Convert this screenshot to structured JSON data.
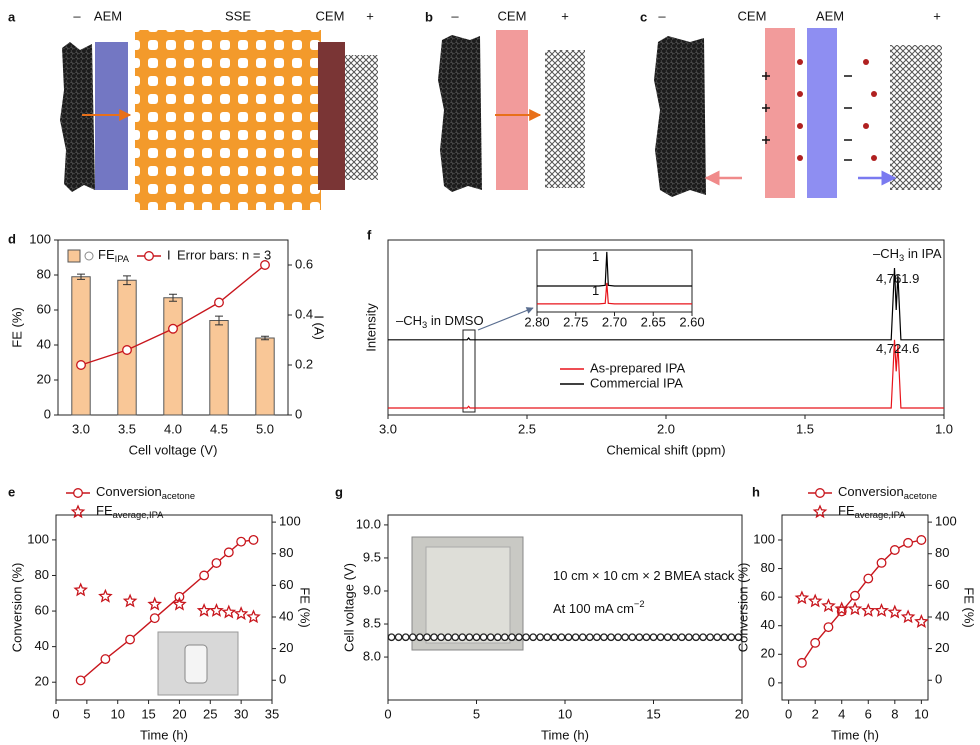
{
  "illustrations": [
    {
      "panel": "a",
      "labels": [
        "–",
        "AEM",
        "SSE",
        "CEM",
        "+"
      ]
    },
    {
      "panel": "b",
      "labels": [
        "–",
        "CEM",
        "+"
      ]
    },
    {
      "panel": "c",
      "labels": [
        "–",
        "CEM",
        "AEM",
        "+"
      ]
    }
  ],
  "chart_data": [
    {
      "type": "bar",
      "panel": "d",
      "categories": [
        "3.0",
        "3.5",
        "4.0",
        "4.5",
        "5.0"
      ],
      "xlabel": "Cell voltage (V)",
      "ylabel": "FE (%)",
      "y2label": "I (A)",
      "ylim": [
        0,
        100
      ],
      "yticks": [
        0,
        20,
        40,
        60,
        80,
        100
      ],
      "y2lim": [
        0,
        0.7
      ],
      "y2ticks": [
        0,
        0.2,
        0.4,
        0.6
      ],
      "legend_note": "Error bars: n = 3",
      "series": [
        {
          "name": {
            "text": "FE",
            "sub": "IPA"
          },
          "kind": "bar",
          "color": "#f9c797",
          "values": [
            79,
            77,
            67,
            54,
            44
          ],
          "errors": [
            1.5,
            2.5,
            2,
            2.5,
            1
          ]
        },
        {
          "name": "I",
          "kind": "line",
          "marker": "circle",
          "color": "#c8161d",
          "axis": "y2",
          "values": [
            0.2,
            0.26,
            0.345,
            0.45,
            0.6
          ]
        }
      ]
    },
    {
      "type": "line",
      "panel": "f",
      "xlabel": "Chemical shift (ppm)",
      "ylabel": "Intensity",
      "xlim": [
        3,
        1
      ],
      "xticks": [
        {
          "value": 3,
          "label": "3.0"
        },
        2.5,
        {
          "value": 2,
          "label": "2.0"
        },
        1.5,
        {
          "value": 1,
          "label": "1.0"
        }
      ],
      "ylim": [
        0,
        100
      ],
      "x": [
        3,
        2.715,
        2.71,
        2.705,
        1.19,
        1.178,
        1.172,
        1.166,
        1.155,
        1
      ],
      "series": [
        {
          "name": "Commercial IPA",
          "color": "#000000",
          "values": [
            43,
            43,
            44,
            43,
            43,
            84,
            60,
            80,
            43,
            43
          ]
        },
        {
          "name": "As-prepared IPA",
          "color": "#e8141b",
          "values": [
            4,
            4,
            5,
            4,
            4,
            43,
            25,
            40,
            4,
            4
          ]
        }
      ],
      "annotations": [
        {
          "text": "–CH",
          "sub": "3",
          "rest": " in DMSO"
        },
        {
          "text": "–CH",
          "sub": "3",
          "rest": " in IPA"
        },
        {
          "text": "4,761.9"
        },
        {
          "text": "4,724.6"
        }
      ]
    },
    {
      "type": "line",
      "xlim": [
        2.8,
        2.6
      ],
      "xticks": [
        {
          "value": 2.8,
          "label": "2.80"
        },
        2.75,
        {
          "value": 2.7,
          "label": "2.70"
        },
        2.65,
        {
          "value": 2.6,
          "label": "2.60"
        }
      ],
      "ylim": [
        0,
        10
      ],
      "x": [
        2.8,
        2.72,
        2.712,
        2.71,
        2.708,
        2.7,
        2.6
      ],
      "series": [
        {
          "color": "#000000",
          "values": [
            4.2,
            4.2,
            4.3,
            9.7,
            4.3,
            4.2,
            4.2
          ]
        },
        {
          "color": "#e8141b",
          "values": [
            1.3,
            1.3,
            1.4,
            4.7,
            1.4,
            1.3,
            1.3
          ]
        }
      ],
      "annotations": [
        {
          "text": "1"
        },
        {
          "text": "1"
        }
      ]
    },
    {
      "type": "line",
      "panel": "e",
      "xlabel": "Time (h)",
      "ylabel": "Conversion (%)",
      "y2label": "FE (%)",
      "xlim": [
        0,
        35
      ],
      "xticks": [
        0,
        5,
        10,
        15,
        20,
        25,
        30,
        35
      ],
      "ylim": [
        10,
        114
      ],
      "yticks": [
        20,
        40,
        60,
        80,
        100
      ],
      "y2lim": [
        -12.5,
        104.5
      ],
      "y2ticks": [
        0,
        20,
        40,
        60,
        80,
        100
      ],
      "x": [
        4,
        8,
        12,
        16,
        20,
        24,
        26,
        28,
        30,
        32
      ],
      "series": [
        {
          "name": {
            "text": "Conversion",
            "sub": "acetone"
          },
          "kind": "line",
          "marker": "circle",
          "color": "#c8161d",
          "values": [
            21,
            33,
            44,
            56,
            68,
            80,
            87,
            93,
            99,
            100
          ]
        },
        {
          "name": {
            "text": "FE",
            "sub": "average,IPA"
          },
          "kind": "scatter",
          "marker": "star",
          "color": "#c8161d",
          "axis": "y2",
          "values": [
            57,
            53,
            50,
            48,
            48,
            44,
            44,
            43,
            42,
            40
          ]
        }
      ]
    },
    {
      "type": "scatter",
      "panel": "g",
      "xlabel": "Time (h)",
      "ylabel": "Cell voltage (V)",
      "xlim": [
        0,
        20
      ],
      "xticks": [
        0,
        5,
        10,
        15,
        20
      ],
      "ylim": [
        7.35,
        10.15
      ],
      "yticks": [
        {
          "value": 8,
          "label": "8.0"
        },
        8.5,
        {
          "value": 9,
          "label": "9.0"
        },
        9.5,
        {
          "value": 10,
          "label": "10.0"
        }
      ],
      "x": [
        0.2,
        0.6,
        1,
        1.4,
        1.8,
        2.2,
        2.6,
        3,
        3.4,
        3.8,
        4.2,
        4.6,
        5,
        5.4,
        5.8,
        6.2,
        6.6,
        7,
        7.4,
        7.8,
        8.2,
        8.6,
        9,
        9.4,
        9.8,
        10.2,
        10.6,
        11,
        11.4,
        11.8,
        12.2,
        12.6,
        13,
        13.4,
        13.8,
        14.2,
        14.6,
        15,
        15.4,
        15.8,
        16.2,
        16.6,
        17,
        17.4,
        17.8,
        18.2,
        18.6,
        19,
        19.4,
        19.8
      ],
      "series": [
        {
          "kind": "scatter",
          "marker": "circle",
          "size": 3.2,
          "color": "#222222",
          "values": [
            8.3,
            8.3,
            8.3,
            8.3,
            8.3,
            8.3,
            8.3,
            8.3,
            8.3,
            8.3,
            8.3,
            8.3,
            8.3,
            8.3,
            8.3,
            8.3,
            8.3,
            8.3,
            8.3,
            8.3,
            8.3,
            8.3,
            8.3,
            8.3,
            8.3,
            8.3,
            8.3,
            8.3,
            8.3,
            8.3,
            8.3,
            8.3,
            8.3,
            8.3,
            8.3,
            8.3,
            8.3,
            8.3,
            8.3,
            8.3,
            8.3,
            8.3,
            8.3,
            8.3,
            8.3,
            8.3,
            8.3,
            8.3,
            8.3,
            8.3
          ]
        }
      ],
      "annotations": [
        {
          "text": "10 cm × 10 cm × 2 BMEA stack"
        },
        {
          "text": "At 100 mA cm",
          "sup": "−2"
        }
      ]
    },
    {
      "type": "line",
      "panel": "h",
      "xlabel": "Time (h)",
      "ylabel": "Conversion (%)",
      "y2label": "FE (%)",
      "xlim": [
        -0.5,
        10.5
      ],
      "xticks": [
        0,
        2,
        4,
        6,
        8,
        10
      ],
      "ylim": [
        -12,
        117.5
      ],
      "yticks": [
        0,
        20,
        40,
        60,
        80,
        100
      ],
      "y2lim": [
        -12.5,
        104.5
      ],
      "y2ticks": [
        0,
        20,
        40,
        60,
        80,
        100
      ],
      "x": [
        1,
        2,
        3,
        4,
        5,
        6,
        7,
        8,
        9,
        10
      ],
      "series": [
        {
          "name": {
            "text": "Conversion",
            "sub": "acetone"
          },
          "kind": "line",
          "marker": "circle",
          "color": "#c8161d",
          "values": [
            14,
            28,
            39,
            50,
            61,
            73,
            84,
            93,
            98,
            100
          ]
        },
        {
          "name": {
            "text": "FE",
            "sub": "average,IPA"
          },
          "kind": "scatter",
          "marker": "star",
          "color": "#c8161d",
          "axis": "y2",
          "values": [
            52,
            50,
            47,
            45,
            45,
            44,
            44,
            43,
            40,
            37
          ]
        }
      ]
    }
  ]
}
